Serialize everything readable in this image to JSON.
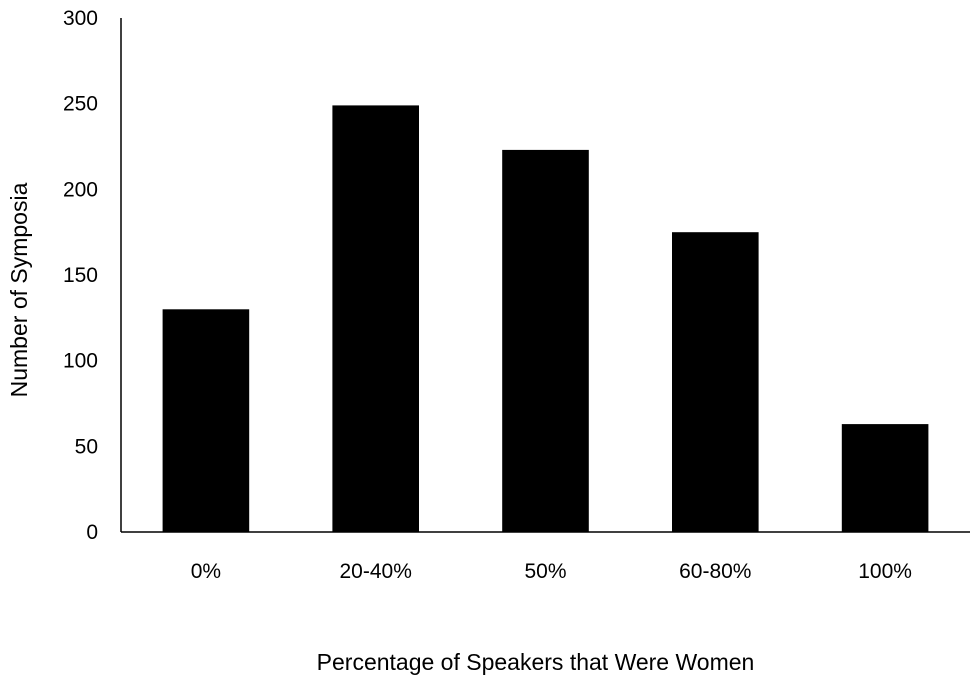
{
  "chart_data": {
    "type": "bar",
    "title": "",
    "xlabel": "Percentage of Speakers that Were Women",
    "ylabel": "Number of Symposia",
    "categories": [
      "0%",
      "20-40%",
      "50%",
      "60-80%",
      "100%"
    ],
    "values": [
      130,
      249,
      223,
      175,
      63
    ],
    "ylim": [
      0,
      300
    ],
    "yticks": [
      0,
      50,
      100,
      150,
      200,
      250,
      300
    ],
    "grid": false,
    "legend": "none",
    "bar_color": "#000000",
    "axis_color": "#000000"
  }
}
